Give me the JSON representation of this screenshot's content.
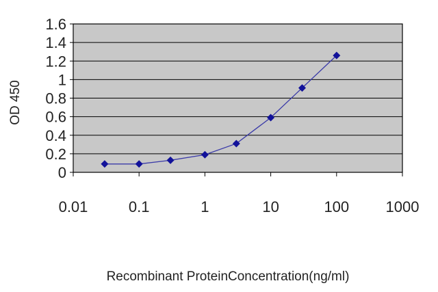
{
  "chart_data": {
    "type": "line",
    "title": "",
    "xlabel": "Recombinant ProteinConcentration(ng/ml)",
    "ylabel": "OD 450",
    "x_scale": "log",
    "xlim": [
      0.01,
      1000
    ],
    "ylim": [
      0,
      1.6
    ],
    "x_ticks": [
      "0.01",
      "0.1",
      "1",
      "10",
      "100",
      "1000"
    ],
    "y_ticks": [
      "0",
      "0.2",
      "0.4",
      "0.6",
      "0.8",
      "1",
      "1.2",
      "1.4",
      "1.6"
    ],
    "grid": "horizontal",
    "legend": "none",
    "series": [
      {
        "x": [
          0.03,
          0.1,
          0.3,
          1,
          3,
          10,
          30,
          100
        ],
        "y": [
          0.09,
          0.09,
          0.13,
          0.19,
          0.31,
          0.59,
          0.91,
          1.26
        ]
      }
    ],
    "colors": {
      "line": "#3a3aa8",
      "marker": "#12129a",
      "plot_background": "#c8c8c8",
      "gridline": "#000000",
      "frame": "#000000"
    }
  }
}
